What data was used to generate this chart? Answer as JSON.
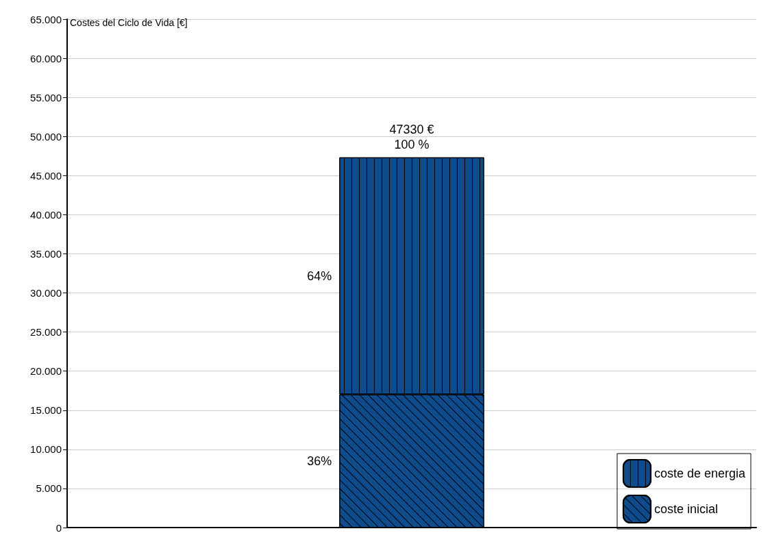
{
  "chart_data": {
    "type": "bar",
    "stacked": true,
    "ylabel": "Costes del Ciclo de Vida [€]",
    "categories": [
      null
    ],
    "series": [
      {
        "name": "coste inicial",
        "color": "#0e4c8e",
        "values": [
          17030
        ]
      },
      {
        "name": "coste de energia",
        "color": "#0e4c8e",
        "values": [
          30300
        ]
      }
    ],
    "totals": [
      "47330 €"
    ],
    "annotations": [
      "100 %",
      "36%",
      "64%"
    ],
    "ylim": [
      0,
      65000
    ],
    "yticks": [
      0,
      {
        "value": 5000,
        "label": "5.000"
      },
      {
        "value": 10000,
        "label": "10.000"
      },
      {
        "value": 15000,
        "label": "15.000"
      },
      {
        "value": 20000,
        "label": "20.000"
      },
      {
        "value": 25000,
        "label": "25.000"
      },
      {
        "value": 30000,
        "label": "30.000"
      },
      {
        "value": 35000,
        "label": "35.000"
      },
      {
        "value": 40000,
        "label": "40.000"
      },
      {
        "value": 45000,
        "label": "45.000"
      },
      {
        "value": 50000,
        "label": "50.000"
      },
      {
        "value": 55000,
        "label": "55.000"
      },
      {
        "value": 60000,
        "label": "60.000"
      },
      {
        "value": 65000,
        "label": "65.000"
      }
    ],
    "grid": "y",
    "legend": "bottom right"
  }
}
